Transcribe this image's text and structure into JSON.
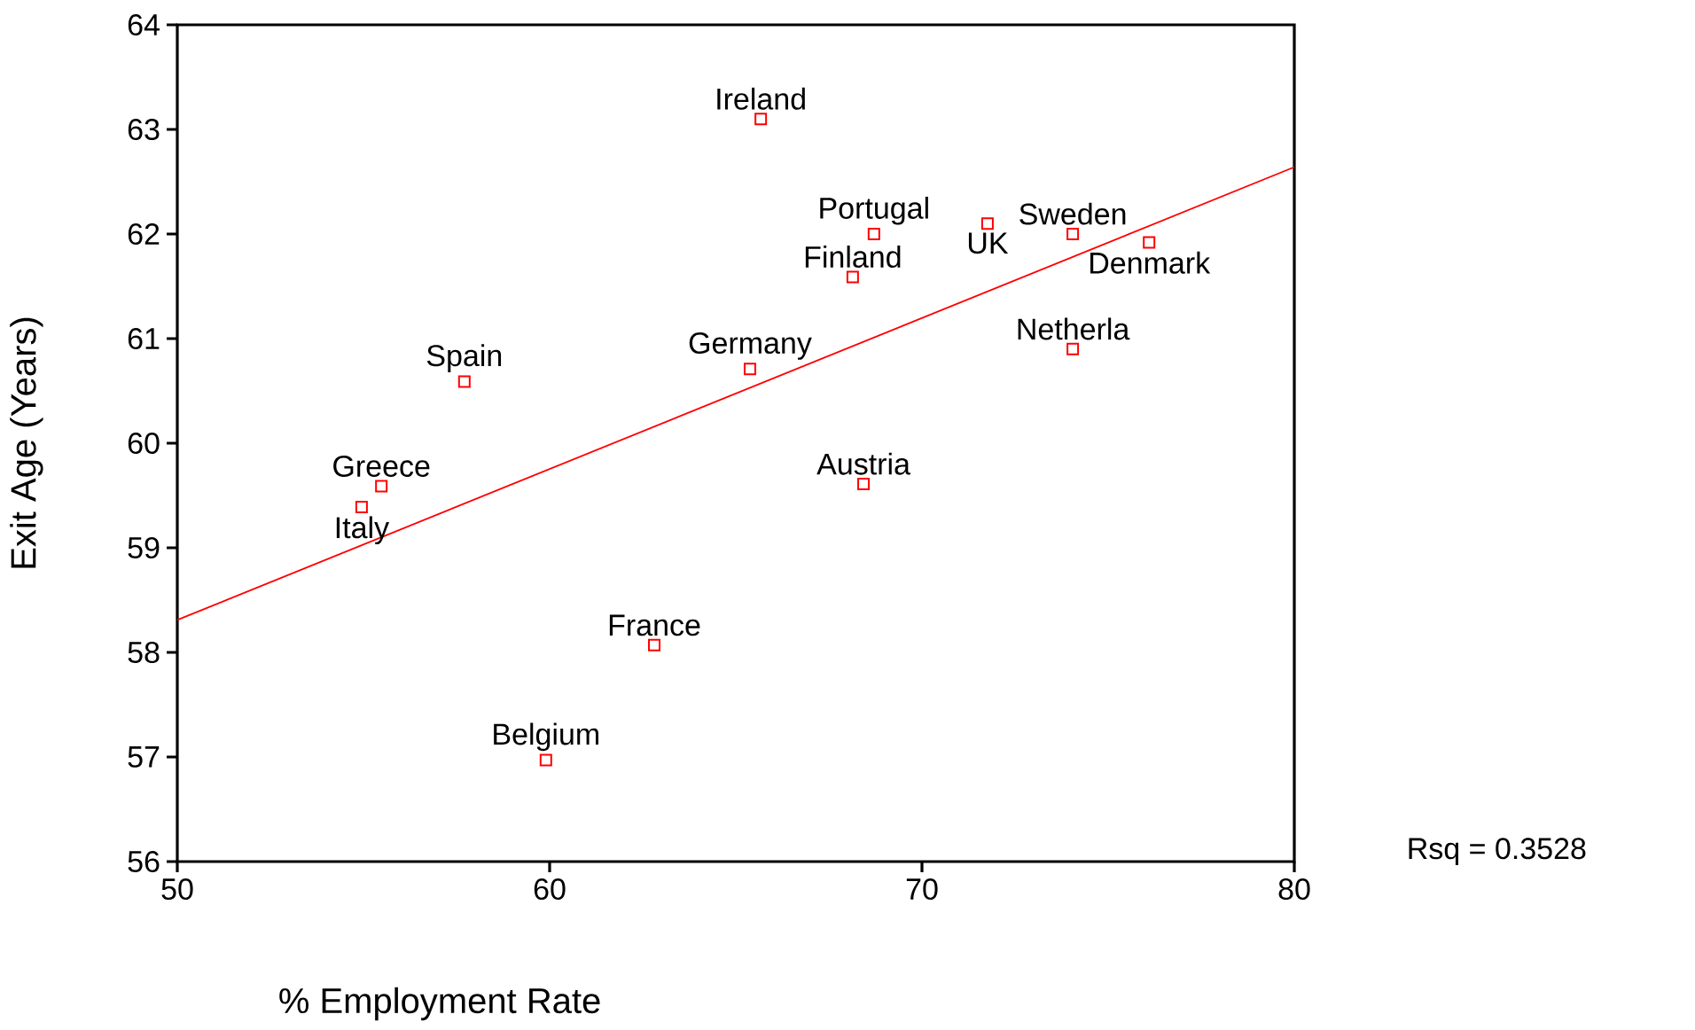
{
  "chart_data": {
    "type": "scatter",
    "xlabel": "% Employment Rate",
    "ylabel": "Exit Age (Years)",
    "xlim": [
      50,
      80
    ],
    "ylim": [
      56,
      64
    ],
    "xticks": [
      50,
      60,
      70,
      80
    ],
    "yticks": [
      56,
      57,
      58,
      59,
      60,
      61,
      62,
      63,
      64
    ],
    "grid": false,
    "series": [
      {
        "marker": "square",
        "color": "#ff0000",
        "x": [
          65.67,
          68.71,
          71.76,
          74.05,
          76.1,
          68.14,
          74.05,
          65.38,
          57.71,
          55.48,
          54.95,
          68.43,
          62.81,
          59.9
        ],
        "values": [
          63.1,
          62.0,
          62.1,
          62.0,
          61.92,
          61.59,
          60.9,
          60.71,
          60.59,
          59.59,
          59.39,
          59.61,
          58.07,
          56.97
        ]
      },
      {
        "type": "line",
        "marker": "none",
        "color": "#ff0000",
        "x": [
          50,
          80
        ],
        "values": [
          58.31,
          62.64
        ]
      }
    ],
    "annotations": [
      {
        "text": "Ireland",
        "x": 65.67,
        "y": 63.1
      },
      {
        "text": "Portugal",
        "x": 68.71,
        "y": 62.0
      },
      {
        "text": "UK",
        "x": 71.76,
        "y": 62.1
      },
      {
        "text": "Sweden",
        "x": 74.05,
        "y": 62.0
      },
      {
        "text": "Denmark",
        "x": 76.1,
        "y": 61.92
      },
      {
        "text": "Finland",
        "x": 68.14,
        "y": 61.59
      },
      {
        "text": "Netherla",
        "x": 74.05,
        "y": 60.9
      },
      {
        "text": "Germany",
        "x": 65.38,
        "y": 60.71
      },
      {
        "text": "Spain",
        "x": 57.71,
        "y": 60.59
      },
      {
        "text": "Greece",
        "x": 55.48,
        "y": 59.59
      },
      {
        "text": "Italy",
        "x": 54.95,
        "y": 59.39
      },
      {
        "text": "Austria",
        "x": 68.43,
        "y": 59.61
      },
      {
        "text": "France",
        "x": 62.81,
        "y": 58.07
      },
      {
        "text": "Belgium",
        "x": 59.9,
        "y": 56.97
      },
      "Rsq = 0.3528"
    ]
  }
}
